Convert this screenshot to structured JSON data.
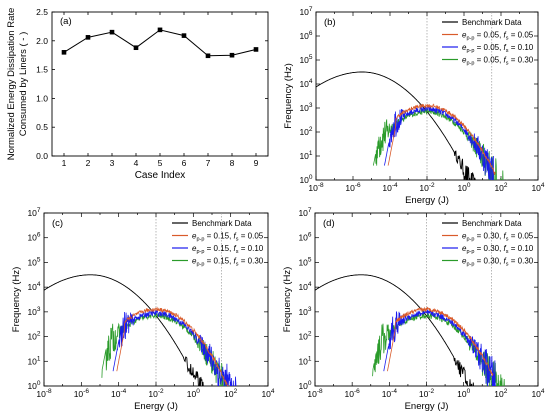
{
  "chart_data": [
    {
      "panel": "(a)",
      "type": "line",
      "xlabel": "Case Index",
      "ylabel_line1": "Normalized Energy Dissipation Rate",
      "ylabel_line2": "Consumed by Liners ( - )",
      "xlim": [
        0.5,
        9.5
      ],
      "ylim": [
        0.0,
        2.5
      ],
      "x_ticks": [
        "1",
        "2",
        "3",
        "4",
        "5",
        "6",
        "7",
        "8",
        "9"
      ],
      "y_ticks": [
        "0.0",
        "0.5",
        "1.0",
        "1.5",
        "2.0",
        "2.5"
      ],
      "series": [
        {
          "x": [
            1,
            2,
            3,
            4,
            5,
            6,
            7,
            8,
            9
          ],
          "values": [
            1.8,
            2.06,
            2.15,
            1.88,
            2.19,
            2.09,
            1.74,
            1.75,
            1.85
          ]
        }
      ],
      "scale": "linear",
      "grid": false
    },
    {
      "panel": "(b)",
      "type": "line",
      "scale": "log-log",
      "xlabel": "Energy (J)",
      "ylabel": "Frequency (Hz)",
      "xlim_exp": [
        -8,
        4
      ],
      "ylim_exp": [
        0,
        7
      ],
      "x_ticks": [
        "10-8",
        "10-6",
        "10-4",
        "10-2",
        "100",
        "102",
        "104"
      ],
      "y_ticks": [
        "100",
        "101",
        "102",
        "103",
        "104",
        "105",
        "106",
        "107"
      ],
      "vlines_exp": [
        -2,
        1.5
      ],
      "legend_position": "top-right",
      "series": [
        {
          "name": "Benchmark Data",
          "color": "#000000",
          "kind": "benchmark"
        },
        {
          "name": "ep-p = 0.05, fs = 0.05",
          "ep": "0.05",
          "fs": "0.05",
          "color": "#d95b2b",
          "kind": "red",
          "tail_exp": 1.7
        },
        {
          "name": "ep-p = 0.05, fs = 0.10",
          "ep": "0.05",
          "fs": "0.10",
          "color": "#1a1aee",
          "kind": "blue",
          "tail_exp": 1.6
        },
        {
          "name": "ep-p = 0.05, fs = 0.30",
          "ep": "0.05",
          "fs": "0.30",
          "color": "#2a9b2a",
          "kind": "green",
          "tail_exp": 2.8
        }
      ]
    },
    {
      "panel": "(c)",
      "type": "line",
      "scale": "log-log",
      "xlabel": "Energy (J)",
      "ylabel": "Frequency (Hz)",
      "xlim_exp": [
        -8,
        4
      ],
      "ylim_exp": [
        0,
        7
      ],
      "x_ticks": [
        "10-8",
        "10-6",
        "10-4",
        "10-2",
        "100",
        "102",
        "104"
      ],
      "y_ticks": [
        "100",
        "101",
        "102",
        "103",
        "104",
        "105",
        "106",
        "107"
      ],
      "vlines_exp": [
        -2,
        1.5
      ],
      "legend_position": "top-right",
      "series": [
        {
          "name": "Benchmark Data",
          "color": "#000000",
          "kind": "benchmark"
        },
        {
          "name": "ep-p = 0.15, fs = 0.05",
          "ep": "0.15",
          "fs": "0.05",
          "color": "#d95b2b",
          "kind": "red",
          "tail_exp": 2.1
        },
        {
          "name": "ep-p = 0.15, fs = 0.10",
          "ep": "0.15",
          "fs": "0.10",
          "color": "#1a1aee",
          "kind": "blue",
          "tail_exp": 2.4
        },
        {
          "name": "ep-p = 0.15, fs = 0.30",
          "ep": "0.15",
          "fs": "0.30",
          "color": "#2a9b2a",
          "kind": "green",
          "tail_exp": 1.9
        }
      ]
    },
    {
      "panel": "(d)",
      "type": "line",
      "scale": "log-log",
      "xlabel": "Energy (J)",
      "ylabel": "Frequency (Hz)",
      "xlim_exp": [
        -8,
        4
      ],
      "ylim_exp": [
        0,
        7
      ],
      "x_ticks": [
        "10-8",
        "10-6",
        "10-4",
        "10-2",
        "100",
        "102",
        "104"
      ],
      "y_ticks": [
        "100",
        "101",
        "102",
        "103",
        "104",
        "105",
        "106",
        "107"
      ],
      "vlines_exp": [
        -2,
        1.5
      ],
      "legend_position": "top-right",
      "series": [
        {
          "name": "Benchmark Data",
          "color": "#000000",
          "kind": "benchmark"
        },
        {
          "name": "ep-p = 0.30, fs = 0.05",
          "ep": "0.30",
          "fs": "0.05",
          "color": "#d95b2b",
          "kind": "red",
          "tail_exp": 1.6
        },
        {
          "name": "ep-p = 0.30, fs = 0.10",
          "ep": "0.30",
          "fs": "0.10",
          "color": "#1a1aee",
          "kind": "blue",
          "tail_exp": 1.7
        },
        {
          "name": "ep-p = 0.30, fs = 0.30",
          "ep": "0.30",
          "fs": "0.30",
          "color": "#2a9b2a",
          "kind": "green",
          "tail_exp": 2.2
        }
      ]
    }
  ],
  "colors": {
    "benchmark": "#000000",
    "red": "#d95b2b",
    "blue": "#1a1aee",
    "green": "#2a9b2a",
    "axis": "#000000",
    "vline": "#9a9a9a"
  }
}
